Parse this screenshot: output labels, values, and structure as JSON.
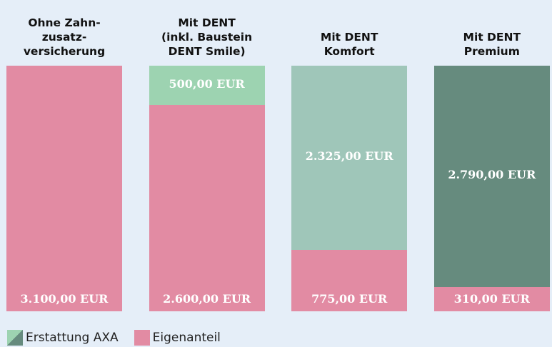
{
  "chart_data": {
    "type": "bar",
    "stacked": true,
    "categories": [
      "Ohne Zahn-\nzusatz-\nversicherung",
      "Mit DENT\n(inkl. Baustein\nDENT Smile)",
      "Mit DENT\nKomfort",
      "Mit DENT\nPremium"
    ],
    "ylim": [
      0,
      3100
    ],
    "series": [
      {
        "name": "Eigenanteil",
        "color": "#e28ba3",
        "values": [
          3100,
          2600,
          775,
          310
        ],
        "value_labels": [
          "3.100,00 EUR",
          "2.600,00 EUR",
          "775,00 EUR",
          "310,00 EUR"
        ]
      },
      {
        "name": "Erstattung AXA",
        "colors": [
          null,
          "#9dd3b1",
          "#9fc6b9",
          "#668b7e"
        ],
        "values": [
          null,
          500,
          2325,
          2790
        ],
        "value_labels": [
          null,
          "500,00 EUR",
          "2.325,00 EUR",
          "2.790,00 EUR"
        ]
      }
    ],
    "legend_order": [
      1,
      0
    ]
  }
}
